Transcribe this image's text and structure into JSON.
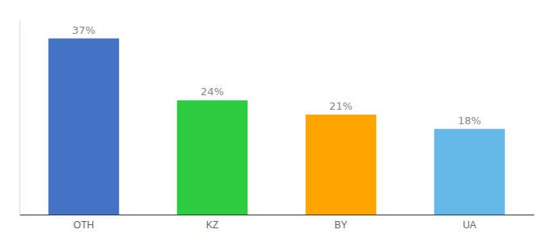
{
  "chart_data": {
    "type": "bar",
    "categories": [
      "OTH",
      "KZ",
      "BY",
      "UA"
    ],
    "values": [
      37,
      24,
      21,
      18
    ],
    "value_labels": [
      "37%",
      "24%",
      "21%",
      "18%"
    ],
    "colors": [
      "#4472C4",
      "#2ECC40",
      "#FFA500",
      "#64B9E8"
    ],
    "ylim": [
      0,
      41
    ],
    "data_labels": true,
    "tick_labels": "x"
  }
}
